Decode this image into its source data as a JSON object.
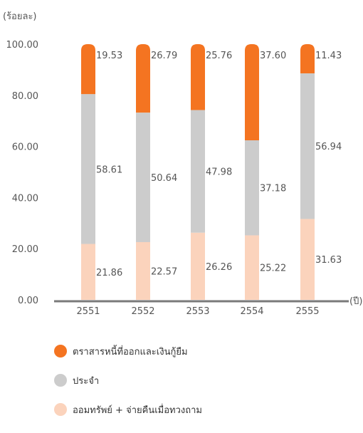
{
  "chart_data": {
    "type": "bar",
    "stacked": true,
    "yunit": "(ร้อยละ)",
    "xunit": "(ปี)",
    "ylim": [
      0,
      100
    ],
    "yticks": [
      "0.00",
      "20.00",
      "40.00",
      "60.00",
      "80.00",
      "100.00"
    ],
    "categories": [
      "2551",
      "2552",
      "2553",
      "2554",
      "2555"
    ],
    "series": [
      {
        "name": "ออมทรัพย์ + จ่ายคืนเมื่อทวงถาม",
        "color": "#FBD3BC",
        "values": [
          21.86,
          22.57,
          26.26,
          25.22,
          31.63
        ],
        "labels": [
          "21.86",
          "22.57",
          "26.26",
          "25.22",
          "31.63"
        ]
      },
      {
        "name": "ประจำ",
        "color": "#CCCCCC",
        "values": [
          58.61,
          50.64,
          47.98,
          37.18,
          56.94
        ],
        "labels": [
          "58.61",
          "50.64",
          "47.98",
          "37.18",
          "56.94"
        ]
      },
      {
        "name": "ตราสารหนี้ที่ออกและเงินกู้ยืม",
        "color": "#F47421",
        "values": [
          19.53,
          26.79,
          25.76,
          37.6,
          11.43
        ],
        "labels": [
          "19.53",
          "26.79",
          "25.76",
          "37.60",
          "11.43"
        ]
      }
    ],
    "legend_position": "bottom",
    "grid": false
  },
  "legend": [
    {
      "label": "ตราสารหนี้ที่ออกและเงินกู้ยืม",
      "color": "#F47421"
    },
    {
      "label": "ประจำ",
      "color": "#CCCCCC"
    },
    {
      "label": "ออมทรัพย์ + จ่ายคืนเมื่อทวงถาม",
      "color": "#FBD3BC"
    }
  ]
}
